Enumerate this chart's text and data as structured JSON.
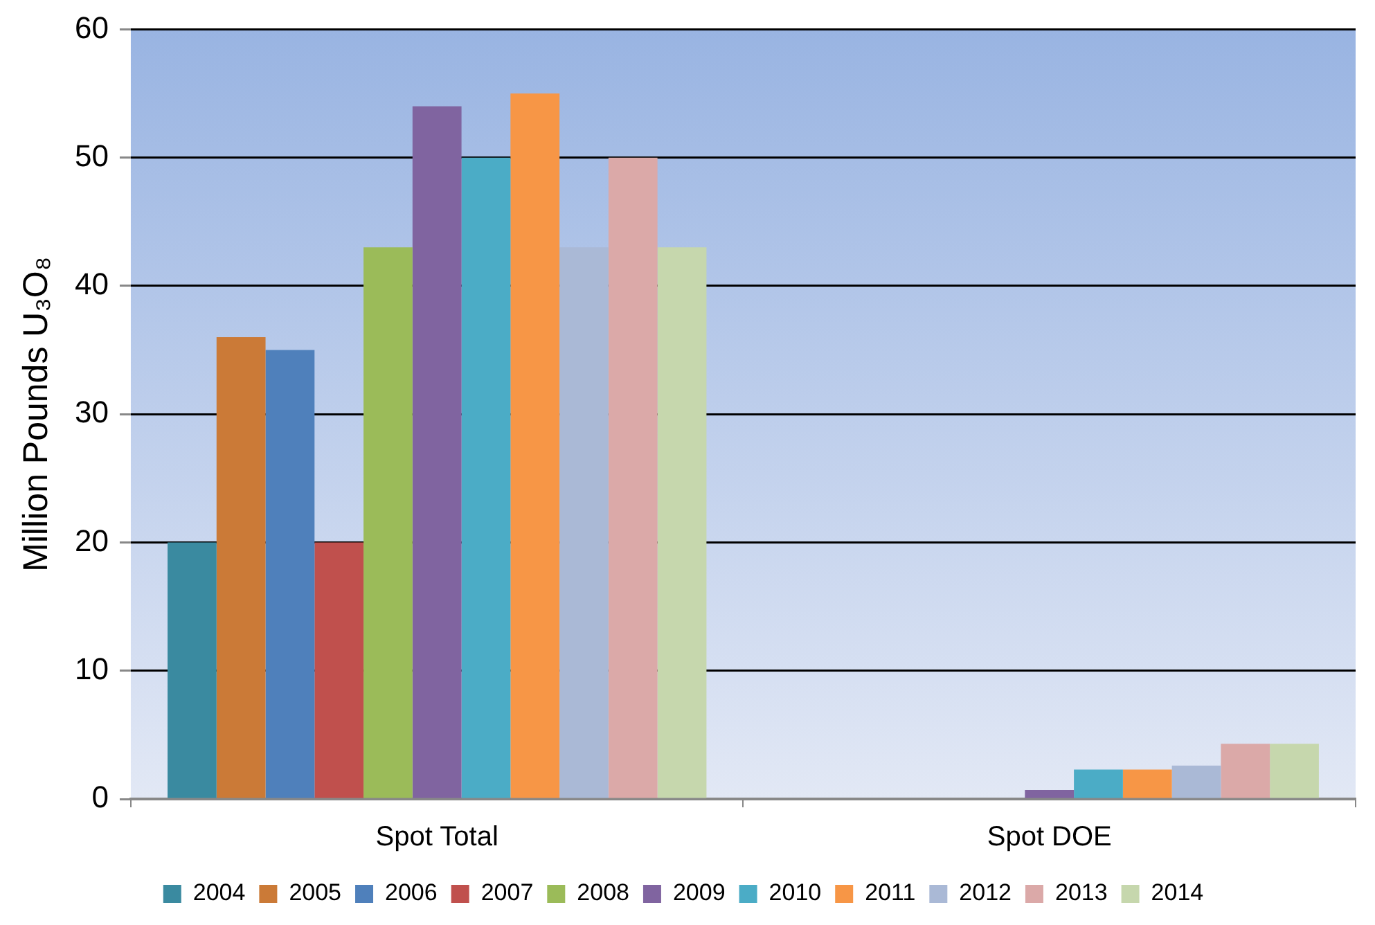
{
  "chart_data": {
    "type": "bar",
    "ylabel": "Million Pounds U₃O₈",
    "categories": [
      "Spot Total",
      "Spot DOE"
    ],
    "series": [
      {
        "name": "2004",
        "color": "#3a8aa0",
        "values": [
          20,
          0
        ]
      },
      {
        "name": "2005",
        "color": "#cb7a37",
        "values": [
          36,
          0
        ]
      },
      {
        "name": "2006",
        "color": "#4f80bb",
        "values": [
          35,
          0
        ]
      },
      {
        "name": "2007",
        "color": "#c0504d",
        "values": [
          20,
          0
        ]
      },
      {
        "name": "2008",
        "color": "#9bbb59",
        "values": [
          43,
          0
        ]
      },
      {
        "name": "2009",
        "color": "#8064a0",
        "values": [
          54,
          0.7
        ]
      },
      {
        "name": "2010",
        "color": "#4bacc6",
        "values": [
          50,
          2.3
        ]
      },
      {
        "name": "2011",
        "color": "#f79646",
        "values": [
          55,
          2.3
        ]
      },
      {
        "name": "2012",
        "color": "#aab9d6",
        "values": [
          43,
          2.6
        ]
      },
      {
        "name": "2013",
        "color": "#dba9a8",
        "values": [
          50,
          4.3
        ]
      },
      {
        "name": "2014",
        "color": "#c6d7ad",
        "values": [
          43,
          4.3
        ]
      }
    ],
    "ylim": [
      0,
      60
    ],
    "yticks": [
      0,
      10,
      20,
      30,
      40,
      50,
      60
    ],
    "grid": "y",
    "legend": "bottom"
  }
}
